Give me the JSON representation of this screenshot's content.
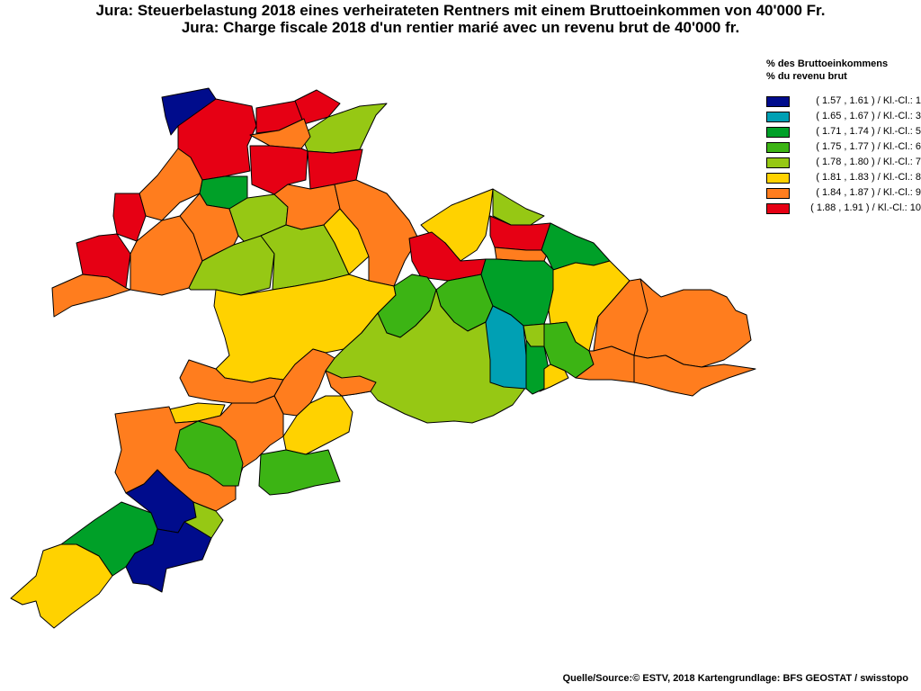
{
  "title_de": "Jura: Steuerbelastung 2018 eines verheirateten Rentners mit einem Bruttoeinkommen von 40'000 Fr.",
  "title_fr": "Jura: Charge fiscale 2018 d'un rentier marié avec un revenu brut de 40'000 fr.",
  "legend": {
    "heading_de": "% des Bruttoeinkommens",
    "heading_fr": "% du revenu brut",
    "classes": [
      {
        "label": "( 1.57 , 1.61 ) / Kl.-Cl.: 1",
        "color": "#000c8c"
      },
      {
        "label": "( 1.65 , 1.67 ) / Kl.-Cl.: 3",
        "color": "#00a0b4"
      },
      {
        "label": "( 1.71 , 1.74 ) / Kl.-Cl.: 5",
        "color": "#00a028"
      },
      {
        "label": "( 1.75 , 1.77 ) / Kl.-Cl.: 6",
        "color": "#3cb414"
      },
      {
        "label": "( 1.78 , 1.80 ) / Kl.-Cl.: 7",
        "color": "#96c814"
      },
      {
        "label": "( 1.81 , 1.83 ) / Kl.-Cl.: 8",
        "color": "#ffd200"
      },
      {
        "label": "( 1.84 , 1.87 ) / Kl.-Cl.: 9",
        "color": "#ff7d1e"
      },
      {
        "label": "( 1.88 , 1.91 ) / Kl.-Cl.: 10",
        "color": "#e60014"
      }
    ]
  },
  "source": "Quelle/Source:© ESTV, 2018 Kartengrundlage: BFS GEOSTAT / swisstopo"
}
